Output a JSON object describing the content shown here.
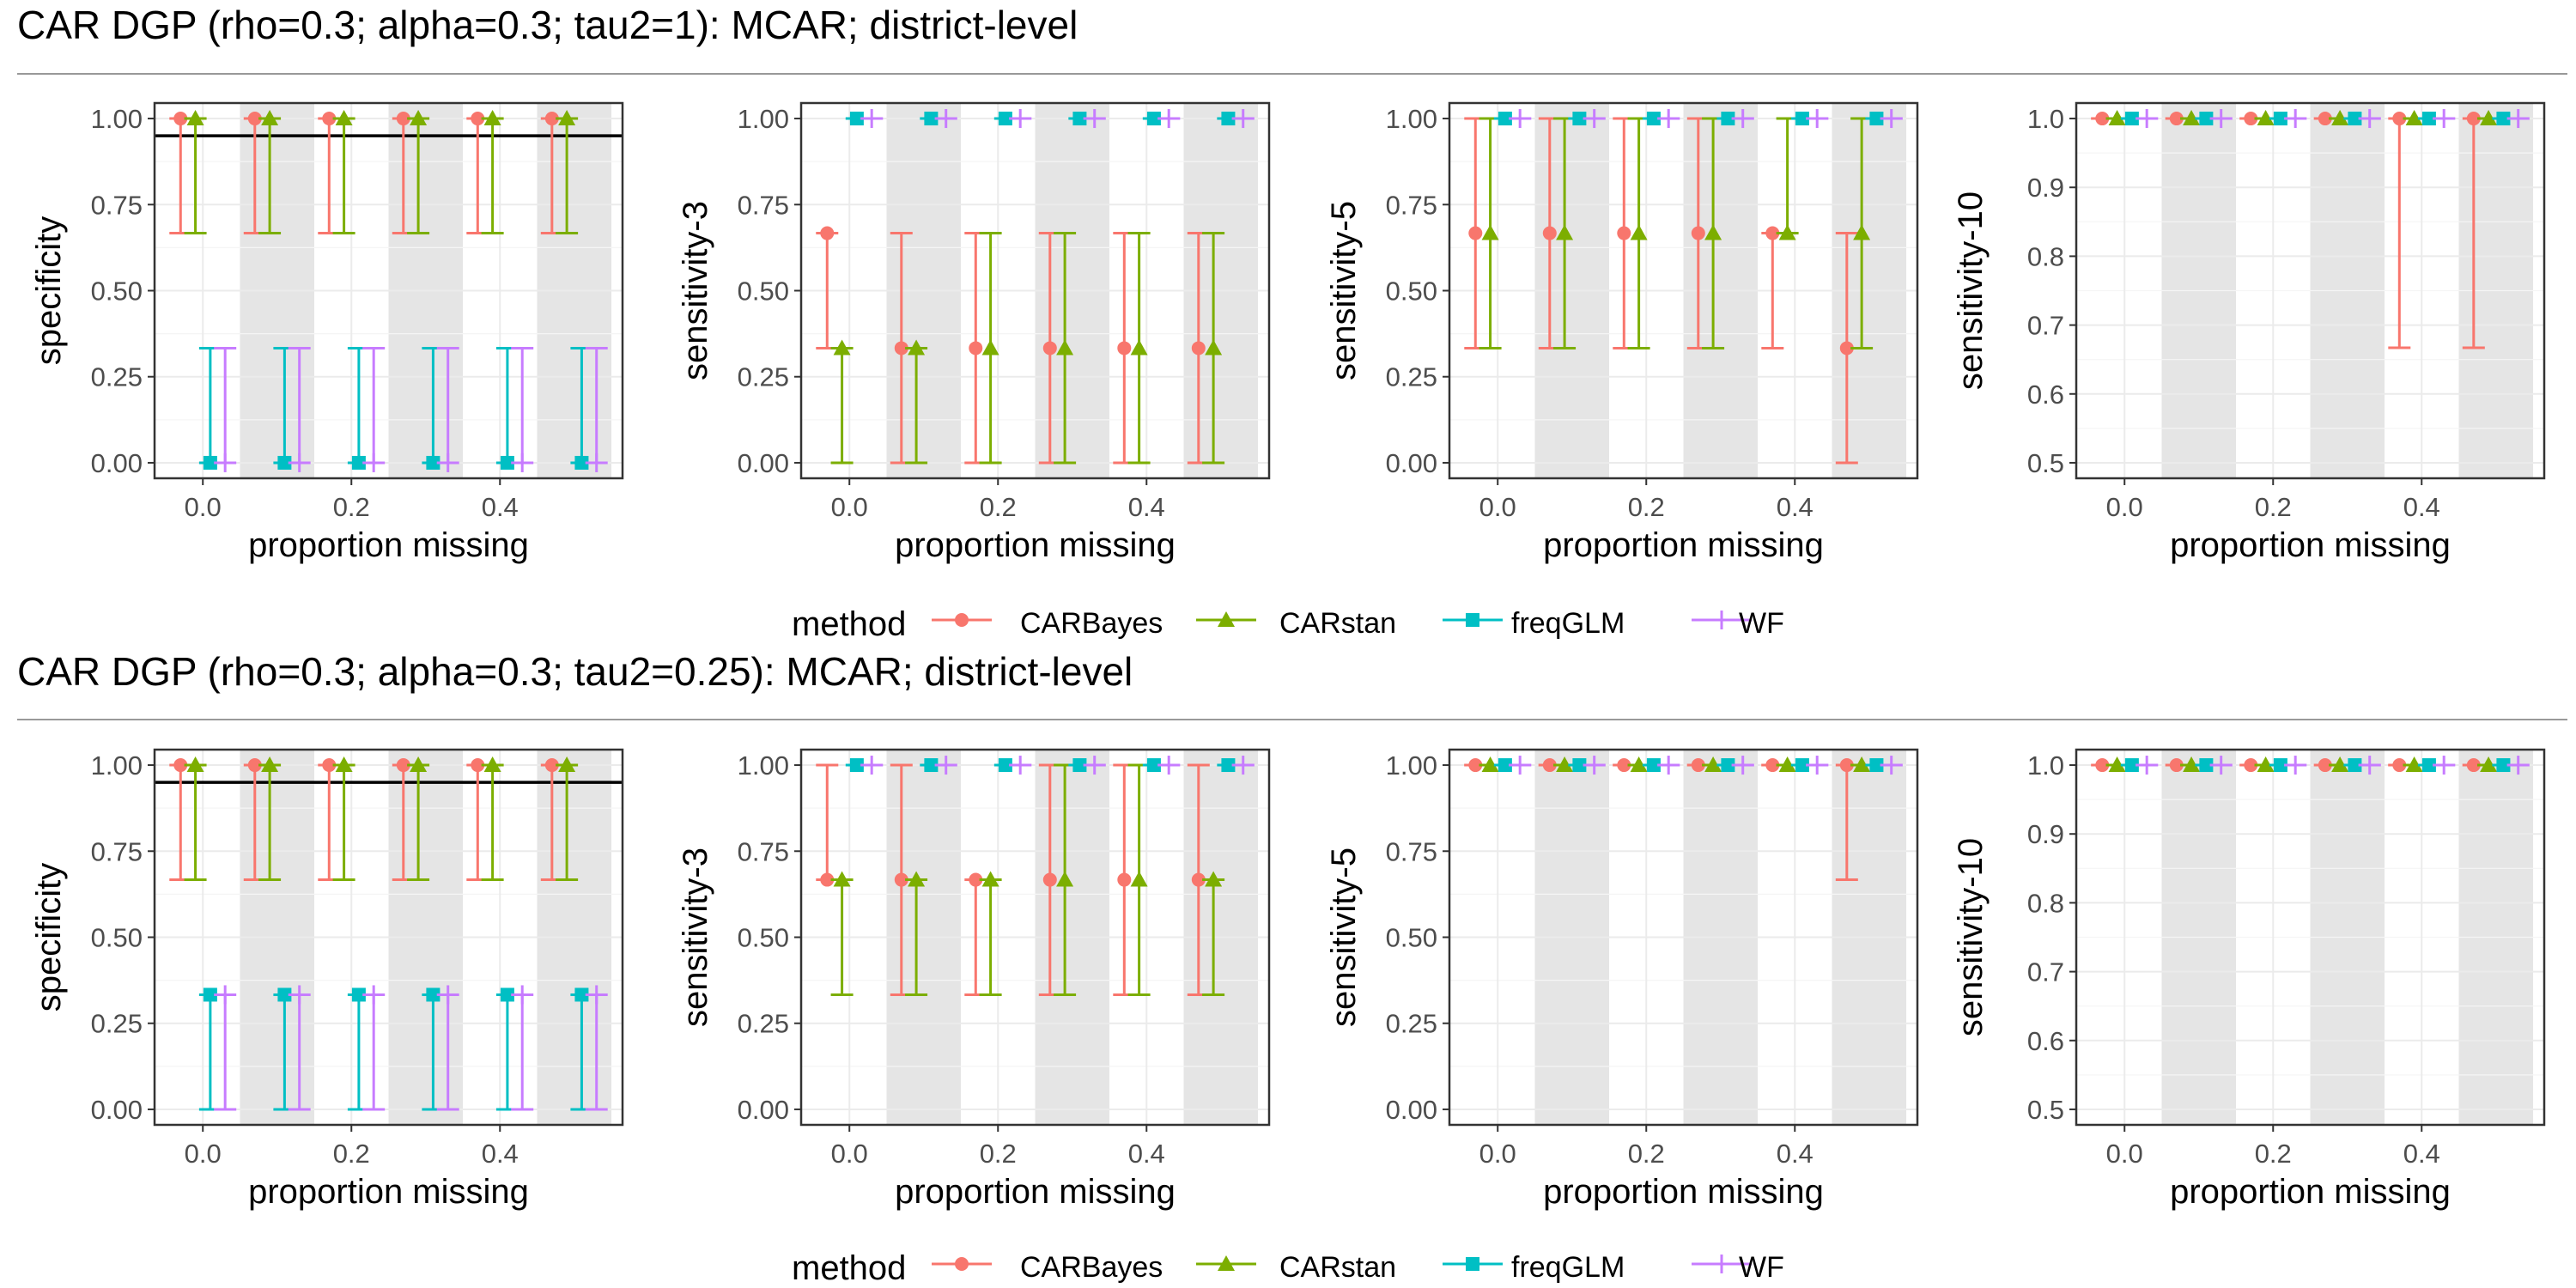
{
  "colors": {
    "CARBayes": "#F8766D",
    "CARstan": "#7CAE00",
    "freqGLM": "#00BFC4",
    "WF": "#C77CFF",
    "shade": "#E5E5E5",
    "grid_major": "#EBEBEB",
    "grid_minor": "#F5F5F5",
    "axis": "#333333",
    "text": "#000000",
    "tick_text": "#4D4D4D"
  },
  "legend": {
    "title": "method",
    "entries": [
      {
        "name": "CARBayes",
        "shape": "circle"
      },
      {
        "name": "CARstan",
        "shape": "triangle"
      },
      {
        "name": "freqGLM",
        "shape": "square"
      },
      {
        "name": "WF",
        "shape": "plus"
      }
    ]
  },
  "methods": [
    "CARBayes",
    "CARstan",
    "freqGLM",
    "WF"
  ],
  "chart_data": [
    {
      "type": "errorbar",
      "row": 0,
      "title": "CAR DGP (rho=0.3; alpha=0.3; tau2=1): MCAR; district-level",
      "xlabel": "proportion missing",
      "ylabel": "specificity",
      "x": [
        0.0,
        0.1,
        0.2,
        0.3,
        0.4,
        0.5
      ],
      "x_ticks": [
        "0.0",
        "0.2",
        "0.4"
      ],
      "y_ticks": [
        "0.00",
        "0.25",
        "0.50",
        "0.75",
        "1.00"
      ],
      "ylim": [
        0,
        1
      ],
      "hline": 0.95,
      "series": [
        {
          "name": "CARBayes",
          "median": [
            1,
            1,
            1,
            1,
            1,
            1
          ],
          "low": [
            0.667,
            0.667,
            0.667,
            0.667,
            0.667,
            0.667
          ],
          "high": [
            1,
            1,
            1,
            1,
            1,
            1
          ]
        },
        {
          "name": "CARstan",
          "median": [
            1,
            1,
            1,
            1,
            1,
            1
          ],
          "low": [
            0.667,
            0.667,
            0.667,
            0.667,
            0.667,
            0.667
          ],
          "high": [
            1,
            1,
            1,
            1,
            1,
            1
          ]
        },
        {
          "name": "freqGLM",
          "median": [
            0,
            0,
            0,
            0,
            0,
            0
          ],
          "low": [
            0,
            0,
            0,
            0,
            0,
            0
          ],
          "high": [
            0.333,
            0.333,
            0.333,
            0.333,
            0.333,
            0.333
          ]
        },
        {
          "name": "WF",
          "median": [
            0,
            0,
            0,
            0,
            0,
            0
          ],
          "low": [
            0,
            0,
            0,
            0,
            0,
            0
          ],
          "high": [
            0.333,
            0.333,
            0.333,
            0.333,
            0.333,
            0.333
          ]
        }
      ]
    },
    {
      "type": "errorbar",
      "row": 0,
      "xlabel": "proportion missing",
      "ylabel": "sensitivity-3",
      "x": [
        0.0,
        0.1,
        0.2,
        0.3,
        0.4,
        0.5
      ],
      "x_ticks": [
        "0.0",
        "0.2",
        "0.4"
      ],
      "y_ticks": [
        "0.00",
        "0.25",
        "0.50",
        "0.75",
        "1.00"
      ],
      "ylim": [
        0,
        1
      ],
      "series": [
        {
          "name": "CARBayes",
          "median": [
            0.667,
            0.333,
            0.333,
            0.333,
            0.333,
            0.333
          ],
          "low": [
            0.333,
            0,
            0,
            0,
            0,
            0
          ],
          "high": [
            0.667,
            0.667,
            0.667,
            0.667,
            0.667,
            0.667
          ]
        },
        {
          "name": "CARstan",
          "median": [
            0.333,
            0.333,
            0.333,
            0.333,
            0.333,
            0.333
          ],
          "low": [
            0,
            0,
            0,
            0,
            0,
            0
          ],
          "high": [
            0.333,
            0.333,
            0.667,
            0.667,
            0.667,
            0.667
          ]
        },
        {
          "name": "freqGLM",
          "median": [
            1,
            1,
            1,
            1,
            1,
            1
          ],
          "low": [
            1,
            1,
            1,
            1,
            1,
            1
          ],
          "high": [
            1,
            1,
            1,
            1,
            1,
            1
          ]
        },
        {
          "name": "WF",
          "median": [
            1,
            1,
            1,
            1,
            1,
            1
          ],
          "low": [
            1,
            1,
            1,
            1,
            1,
            1
          ],
          "high": [
            1,
            1,
            1,
            1,
            1,
            1
          ]
        }
      ]
    },
    {
      "type": "errorbar",
      "row": 0,
      "xlabel": "proportion missing",
      "ylabel": "sensitivity-5",
      "x": [
        0.0,
        0.1,
        0.2,
        0.3,
        0.4,
        0.5
      ],
      "x_ticks": [
        "0.0",
        "0.2",
        "0.4"
      ],
      "y_ticks": [
        "0.00",
        "0.25",
        "0.50",
        "0.75",
        "1.00"
      ],
      "ylim": [
        0,
        1
      ],
      "series": [
        {
          "name": "CARBayes",
          "median": [
            0.667,
            0.667,
            0.667,
            0.667,
            0.667,
            0.333
          ],
          "low": [
            0.333,
            0.333,
            0.333,
            0.333,
            0.333,
            0
          ],
          "high": [
            1,
            1,
            1,
            1,
            0.667,
            0.667
          ]
        },
        {
          "name": "CARstan",
          "median": [
            0.667,
            0.667,
            0.667,
            0.667,
            0.667,
            0.667
          ],
          "low": [
            0.333,
            0.333,
            0.333,
            0.333,
            0.667,
            0.333
          ],
          "high": [
            1,
            1,
            1,
            1,
            1,
            1
          ]
        },
        {
          "name": "freqGLM",
          "median": [
            1,
            1,
            1,
            1,
            1,
            1
          ],
          "low": [
            1,
            1,
            1,
            1,
            1,
            1
          ],
          "high": [
            1,
            1,
            1,
            1,
            1,
            1
          ]
        },
        {
          "name": "WF",
          "median": [
            1,
            1,
            1,
            1,
            1,
            1
          ],
          "low": [
            1,
            1,
            1,
            1,
            1,
            1
          ],
          "high": [
            1,
            1,
            1,
            1,
            1,
            1
          ]
        }
      ]
    },
    {
      "type": "errorbar",
      "row": 0,
      "xlabel": "proportion missing",
      "ylabel": "sensitivity-10",
      "x": [
        0.0,
        0.1,
        0.2,
        0.3,
        0.4,
        0.5
      ],
      "x_ticks": [
        "0.0",
        "0.2",
        "0.4"
      ],
      "y_ticks": [
        "0.5",
        "0.6",
        "0.7",
        "0.8",
        "0.9",
        "1.0"
      ],
      "ylim": [
        0.5,
        1
      ],
      "series": [
        {
          "name": "CARBayes",
          "median": [
            1,
            1,
            1,
            1,
            1,
            1
          ],
          "low": [
            1,
            1,
            1,
            1,
            0.667,
            0.667
          ],
          "high": [
            1,
            1,
            1,
            1,
            1,
            1
          ]
        },
        {
          "name": "CARstan",
          "median": [
            1,
            1,
            1,
            1,
            1,
            1
          ],
          "low": [
            1,
            1,
            1,
            1,
            1,
            1
          ],
          "high": [
            1,
            1,
            1,
            1,
            1,
            1
          ]
        },
        {
          "name": "freqGLM",
          "median": [
            1,
            1,
            1,
            1,
            1,
            1
          ],
          "low": [
            1,
            1,
            1,
            1,
            1,
            1
          ],
          "high": [
            1,
            1,
            1,
            1,
            1,
            1
          ]
        },
        {
          "name": "WF",
          "median": [
            1,
            1,
            1,
            1,
            1,
            1
          ],
          "low": [
            1,
            1,
            1,
            1,
            1,
            1
          ],
          "high": [
            1,
            1,
            1,
            1,
            1,
            1
          ]
        }
      ]
    },
    {
      "type": "errorbar",
      "row": 1,
      "title": "CAR DGP (rho=0.3; alpha=0.3; tau2=0.25): MCAR; district-level",
      "xlabel": "proportion missing",
      "ylabel": "specificity",
      "x": [
        0.0,
        0.1,
        0.2,
        0.3,
        0.4,
        0.5
      ],
      "x_ticks": [
        "0.0",
        "0.2",
        "0.4"
      ],
      "y_ticks": [
        "0.00",
        "0.25",
        "0.50",
        "0.75",
        "1.00"
      ],
      "ylim": [
        0,
        1
      ],
      "hline": 0.95,
      "series": [
        {
          "name": "CARBayes",
          "median": [
            1,
            1,
            1,
            1,
            1,
            1
          ],
          "low": [
            0.667,
            0.667,
            0.667,
            0.667,
            0.667,
            0.667
          ],
          "high": [
            1,
            1,
            1,
            1,
            1,
            1
          ]
        },
        {
          "name": "CARstan",
          "median": [
            1,
            1,
            1,
            1,
            1,
            1
          ],
          "low": [
            0.667,
            0.667,
            0.667,
            0.667,
            0.667,
            0.667
          ],
          "high": [
            1,
            1,
            1,
            1,
            1,
            1
          ]
        },
        {
          "name": "freqGLM",
          "median": [
            0.333,
            0.333,
            0.333,
            0.333,
            0.333,
            0.333
          ],
          "low": [
            0,
            0,
            0,
            0,
            0,
            0
          ],
          "high": [
            0.333,
            0.333,
            0.333,
            0.333,
            0.333,
            0.333
          ]
        },
        {
          "name": "WF",
          "median": [
            0.333,
            0.333,
            0.333,
            0.333,
            0.333,
            0.333
          ],
          "low": [
            0,
            0,
            0,
            0,
            0,
            0
          ],
          "high": [
            0.333,
            0.333,
            0.333,
            0.333,
            0.333,
            0.333
          ]
        }
      ]
    },
    {
      "type": "errorbar",
      "row": 1,
      "xlabel": "proportion missing",
      "ylabel": "sensitivity-3",
      "x": [
        0.0,
        0.1,
        0.2,
        0.3,
        0.4,
        0.5
      ],
      "x_ticks": [
        "0.0",
        "0.2",
        "0.4"
      ],
      "y_ticks": [
        "0.00",
        "0.25",
        "0.50",
        "0.75",
        "1.00"
      ],
      "ylim": [
        0,
        1
      ],
      "series": [
        {
          "name": "CARBayes",
          "median": [
            0.667,
            0.667,
            0.667,
            0.667,
            0.667,
            0.667
          ],
          "low": [
            0.667,
            0.333,
            0.333,
            0.333,
            0.333,
            0.333
          ],
          "high": [
            1,
            1,
            0.667,
            1,
            1,
            1
          ]
        },
        {
          "name": "CARstan",
          "median": [
            0.667,
            0.667,
            0.667,
            0.667,
            0.667,
            0.667
          ],
          "low": [
            0.333,
            0.333,
            0.333,
            0.333,
            0.333,
            0.333
          ],
          "high": [
            0.667,
            0.667,
            0.667,
            1,
            1,
            0.667
          ]
        },
        {
          "name": "freqGLM",
          "median": [
            1,
            1,
            1,
            1,
            1,
            1
          ],
          "low": [
            1,
            1,
            1,
            1,
            1,
            1
          ],
          "high": [
            1,
            1,
            1,
            1,
            1,
            1
          ]
        },
        {
          "name": "WF",
          "median": [
            1,
            1,
            1,
            1,
            1,
            1
          ],
          "low": [
            1,
            1,
            1,
            1,
            1,
            1
          ],
          "high": [
            1,
            1,
            1,
            1,
            1,
            1
          ]
        }
      ]
    },
    {
      "type": "errorbar",
      "row": 1,
      "xlabel": "proportion missing",
      "ylabel": "sensitivity-5",
      "x": [
        0.0,
        0.1,
        0.2,
        0.3,
        0.4,
        0.5
      ],
      "x_ticks": [
        "0.0",
        "0.2",
        "0.4"
      ],
      "y_ticks": [
        "0.00",
        "0.25",
        "0.50",
        "0.75",
        "1.00"
      ],
      "ylim": [
        0,
        1
      ],
      "series": [
        {
          "name": "CARBayes",
          "median": [
            1,
            1,
            1,
            1,
            1,
            1
          ],
          "low": [
            1,
            1,
            1,
            1,
            1,
            0.667
          ],
          "high": [
            1,
            1,
            1,
            1,
            1,
            1
          ]
        },
        {
          "name": "CARstan",
          "median": [
            1,
            1,
            1,
            1,
            1,
            1
          ],
          "low": [
            1,
            1,
            1,
            1,
            1,
            1
          ],
          "high": [
            1,
            1,
            1,
            1,
            1,
            1
          ]
        },
        {
          "name": "freqGLM",
          "median": [
            1,
            1,
            1,
            1,
            1,
            1
          ],
          "low": [
            1,
            1,
            1,
            1,
            1,
            1
          ],
          "high": [
            1,
            1,
            1,
            1,
            1,
            1
          ]
        },
        {
          "name": "WF",
          "median": [
            1,
            1,
            1,
            1,
            1,
            1
          ],
          "low": [
            1,
            1,
            1,
            1,
            1,
            1
          ],
          "high": [
            1,
            1,
            1,
            1,
            1,
            1
          ]
        }
      ]
    },
    {
      "type": "errorbar",
      "row": 1,
      "xlabel": "proportion missing",
      "ylabel": "sensitivity-10",
      "x": [
        0.0,
        0.1,
        0.2,
        0.3,
        0.4,
        0.5
      ],
      "x_ticks": [
        "0.0",
        "0.2",
        "0.4"
      ],
      "y_ticks": [
        "0.5",
        "0.6",
        "0.7",
        "0.8",
        "0.9",
        "1.0"
      ],
      "ylim": [
        0.5,
        1
      ],
      "series": [
        {
          "name": "CARBayes",
          "median": [
            1,
            1,
            1,
            1,
            1,
            1
          ],
          "low": [
            1,
            1,
            1,
            1,
            1,
            1
          ],
          "high": [
            1,
            1,
            1,
            1,
            1,
            1
          ]
        },
        {
          "name": "CARstan",
          "median": [
            1,
            1,
            1,
            1,
            1,
            1
          ],
          "low": [
            1,
            1,
            1,
            1,
            1,
            1
          ],
          "high": [
            1,
            1,
            1,
            1,
            1,
            1
          ]
        },
        {
          "name": "freqGLM",
          "median": [
            1,
            1,
            1,
            1,
            1,
            1
          ],
          "low": [
            1,
            1,
            1,
            1,
            1,
            1
          ],
          "high": [
            1,
            1,
            1,
            1,
            1,
            1
          ]
        },
        {
          "name": "WF",
          "median": [
            1,
            1,
            1,
            1,
            1,
            1
          ],
          "low": [
            1,
            1,
            1,
            1,
            1,
            1
          ],
          "high": [
            1,
            1,
            1,
            1,
            1,
            1
          ]
        }
      ]
    }
  ]
}
